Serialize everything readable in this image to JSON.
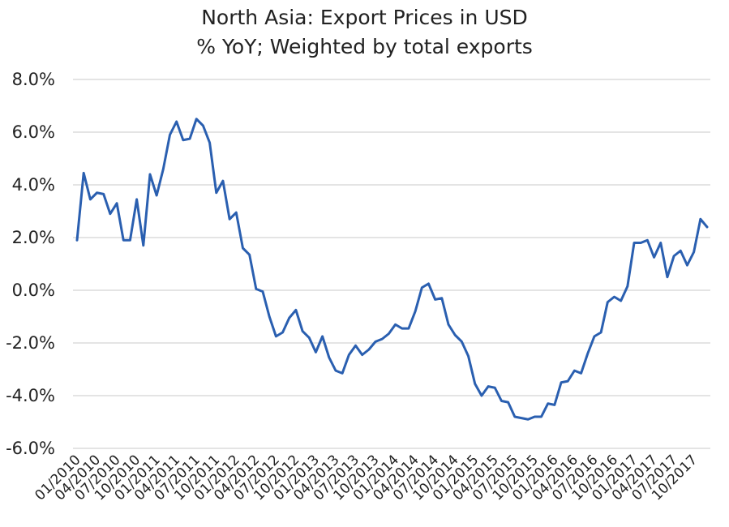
{
  "chart_data": {
    "type": "line",
    "title": "North Asia: Export Prices in USD",
    "subtitle": "% YoY; Weighted by total exports",
    "xlabel": "",
    "ylabel": "",
    "ylim": [
      -6.0,
      8.0
    ],
    "y_ticks": [
      -6.0,
      -4.0,
      -2.0,
      0.0,
      2.0,
      4.0,
      6.0,
      8.0
    ],
    "y_tick_labels": [
      "-6.0%",
      "-4.0%",
      "-2.0%",
      "0.0%",
      "2.0%",
      "4.0%",
      "6.0%",
      "8.0%"
    ],
    "x_tick_labels": [
      "01/2010",
      "04/2010",
      "07/2010",
      "10/2010",
      "01/2011",
      "04/2011",
      "07/2011",
      "10/2011",
      "01/2012",
      "04/2012",
      "07/2012",
      "10/2012",
      "01/2013",
      "04/2013",
      "07/2013",
      "10/2013",
      "01/2014",
      "04/2014",
      "07/2014",
      "10/2014",
      "01/2015",
      "04/2015",
      "07/2015",
      "10/2015",
      "01/2016",
      "04/2016",
      "07/2016",
      "10/2016",
      "01/2017",
      "04/2017",
      "07/2017",
      "10/2017"
    ],
    "grid": "horizontal",
    "line_color": "#2a5fb0",
    "series": [
      {
        "values": [
          1.9,
          4.45,
          3.45,
          3.7,
          3.65,
          2.9,
          3.3,
          1.9,
          1.9,
          3.45,
          1.7,
          4.4,
          3.6,
          4.6,
          5.9,
          6.4,
          5.7,
          5.75,
          6.5,
          6.25,
          5.6,
          3.7,
          4.15,
          2.7,
          2.95,
          1.6,
          1.35,
          0.05,
          -0.05,
          -1.0,
          -1.75,
          -1.6,
          -1.05,
          -0.75,
          -1.55,
          -1.8,
          -2.35,
          -1.75,
          -2.55,
          -3.05,
          -3.15,
          -2.45,
          -2.1,
          -2.45,
          -2.25,
          -1.95,
          -1.85,
          -1.65,
          -1.3,
          -1.45,
          -1.45,
          -0.8,
          0.1,
          0.25,
          -0.35,
          -0.3,
          -1.3,
          -1.7,
          -1.95,
          -2.5,
          -3.55,
          -4.0,
          -3.65,
          -3.7,
          -4.2,
          -4.25,
          -4.8,
          -4.85,
          -4.9,
          -4.8,
          -4.8,
          -4.3,
          -4.35,
          -3.5,
          -3.45,
          -3.05,
          -3.15,
          -2.4,
          -1.75,
          -1.6,
          -0.45,
          -0.25,
          -0.4,
          0.15,
          1.8,
          1.8,
          1.9,
          1.25,
          1.8,
          0.5,
          1.3,
          1.5,
          0.95,
          1.45,
          2.7,
          2.4
        ]
      }
    ]
  }
}
